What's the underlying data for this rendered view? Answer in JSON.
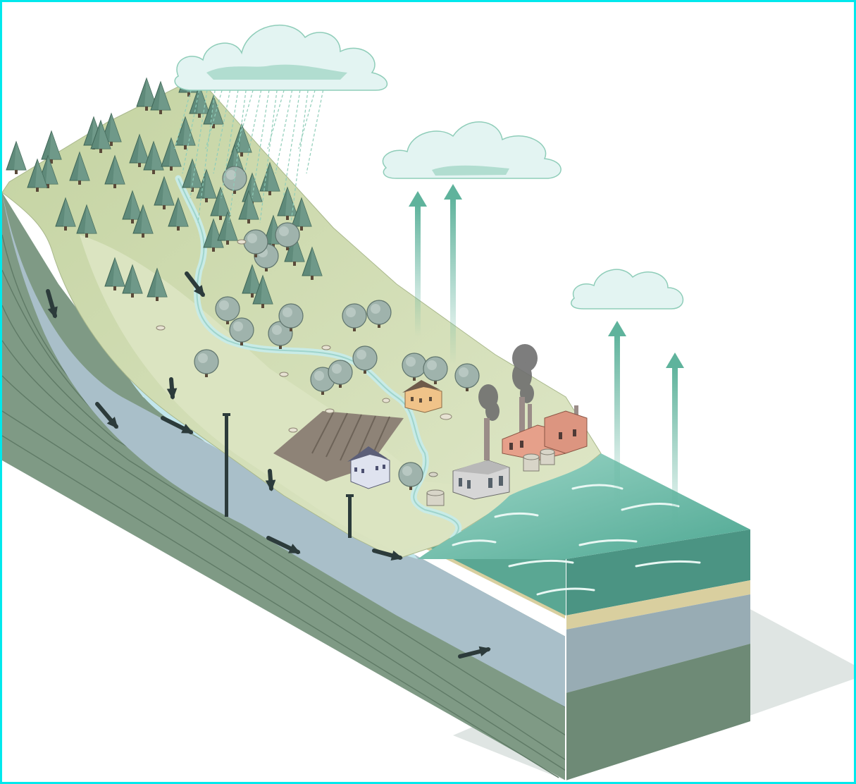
{
  "colors": {
    "frame": "#00e8ec",
    "land_surface": "#c9d7a8",
    "land_light": "#dde6c3",
    "forest_tree": "#5f8a7a",
    "deciduous_tree": "#9fb3ac",
    "stream": "#c8ebe6",
    "soil": "#b7a788",
    "sand_layer": "#d9cf9f",
    "groundwater": "#a9bfc9",
    "aquifer_water": "#bfe4ea",
    "bedrock": "#7f9a85",
    "ocean": "#62b6a2",
    "ocean_deep": "#4b9483",
    "cloud": "#e3f4f2",
    "evaporation_arrow": "#5fb39c",
    "flow_arrow": "#2c3b3b",
    "smoke": "#6f6f6f",
    "factory": "#e6a08a"
  },
  "icons": {
    "rain_cloud": "rain-cloud-icon",
    "cloud": "cloud-icon",
    "evaporation_arrow": "up-arrow-icon",
    "groundwater_flow_arrow": "flow-arrow-icon",
    "well": "well-icon",
    "factory": "factory-icon",
    "house": "house-icon",
    "farm_field": "plowed-field-icon"
  },
  "diagram": {
    "evaporation_arrows": 4,
    "groundwater_flow_arrows": 9,
    "wells": 2,
    "clouds": 3
  }
}
